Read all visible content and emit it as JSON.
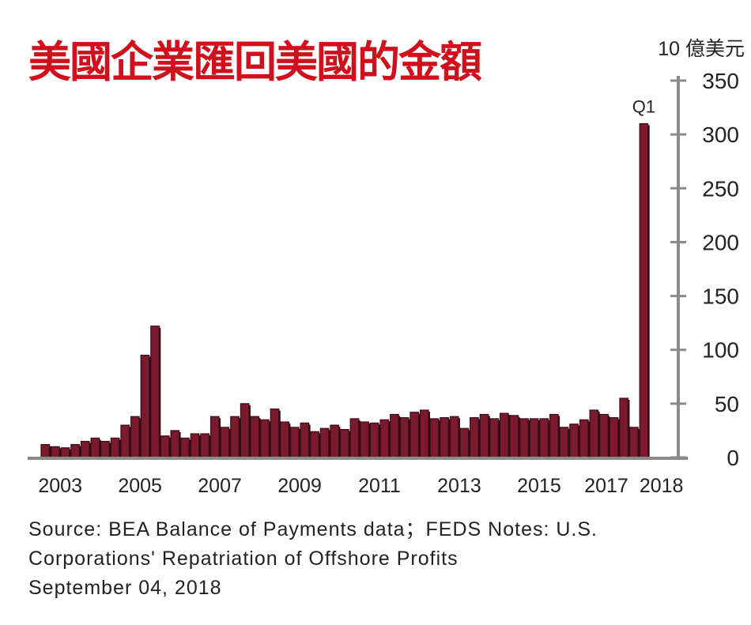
{
  "chart_data": {
    "type": "bar",
    "title": "美國企業匯回美國的金額",
    "ylabel": "10 億美元",
    "xlabel": "",
    "ylim": [
      0,
      350
    ],
    "yticks": [
      "0",
      "50",
      "100",
      "150",
      "200",
      "250",
      "300",
      "350"
    ],
    "xtick_labels": [
      {
        "label": "2003",
        "index": 1.5
      },
      {
        "label": "2005",
        "index": 9.5
      },
      {
        "label": "2007",
        "index": 17.5
      },
      {
        "label": "2009",
        "index": 25.5
      },
      {
        "label": "2011",
        "index": 33.5
      },
      {
        "label": "2013",
        "index": 41.5
      },
      {
        "label": "2015",
        "index": 49.5
      },
      {
        "label": "2017",
        "index": 57.5
      },
      {
        "label": "2018",
        "index": 60.5
      }
    ],
    "annotation": "Q1",
    "values": [
      12,
      10,
      9,
      12,
      15,
      18,
      15,
      18,
      30,
      38,
      95,
      122,
      20,
      25,
      18,
      22,
      22,
      38,
      28,
      38,
      50,
      38,
      35,
      45,
      33,
      28,
      32,
      24,
      27,
      30,
      26,
      36,
      33,
      32,
      35,
      40,
      37,
      42,
      44,
      36,
      37,
      38,
      27,
      37,
      40,
      36,
      41,
      39,
      36,
      36,
      36,
      40,
      28,
      31,
      35,
      44,
      40,
      37,
      55,
      28,
      310
    ],
    "bar_color": "#7a1a2c",
    "grid": false
  },
  "source": {
    "line1": "Source: BEA Balance of Payments data；FEDS Notes: U.S.",
    "line2": "Corporations' Repatriation of Offshore Profits",
    "line3": "September 04, 2018"
  }
}
